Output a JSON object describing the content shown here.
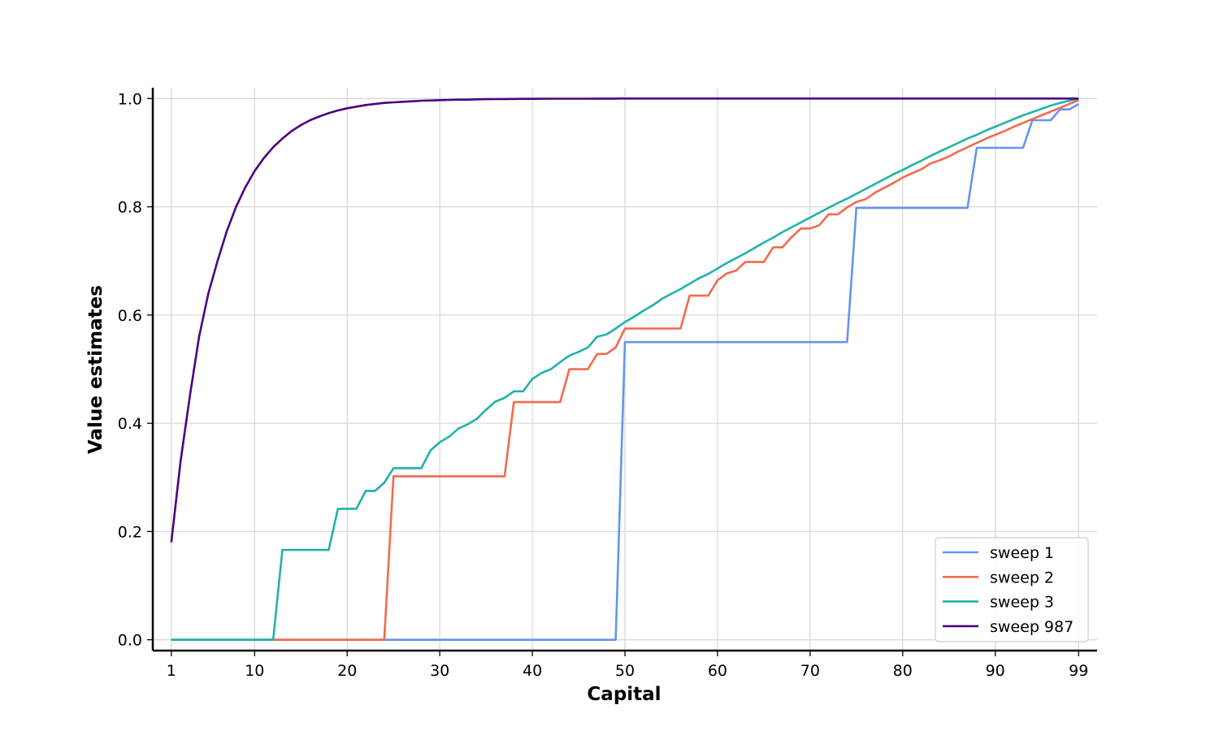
{
  "chart_data": {
    "type": "line",
    "xlabel": "Capital",
    "ylabel": "Value estimates",
    "xlim": [
      -1,
      101
    ],
    "ylim": [
      -0.02,
      1.02
    ],
    "xticks": [
      1,
      10,
      20,
      30,
      40,
      50,
      60,
      70,
      80,
      90,
      99
    ],
    "yticks": [
      0.0,
      0.2,
      0.4,
      0.6,
      0.8,
      1.0
    ],
    "ytick_labels": [
      "0.0",
      "0.2",
      "0.4",
      "0.6",
      "0.8",
      "1.0"
    ],
    "grid": true,
    "legend_position": "lower-right",
    "x": [
      1,
      2,
      3,
      4,
      5,
      6,
      7,
      8,
      9,
      10,
      11,
      12,
      13,
      14,
      15,
      16,
      17,
      18,
      19,
      20,
      21,
      22,
      23,
      24,
      25,
      26,
      27,
      28,
      29,
      30,
      31,
      32,
      33,
      34,
      35,
      36,
      37,
      38,
      39,
      40,
      41,
      42,
      43,
      44,
      45,
      46,
      47,
      48,
      49,
      50,
      51,
      52,
      53,
      54,
      55,
      56,
      57,
      58,
      59,
      60,
      61,
      62,
      63,
      64,
      65,
      66,
      67,
      68,
      69,
      70,
      71,
      72,
      73,
      74,
      75,
      76,
      77,
      78,
      79,
      80,
      81,
      82,
      83,
      84,
      85,
      86,
      87,
      88,
      89,
      90,
      91,
      92,
      93,
      94,
      95,
      96,
      97,
      98,
      99
    ],
    "series": [
      {
        "name": "sweep 1",
        "color": "#6495ED",
        "values": [
          0,
          0,
          0,
          0,
          0,
          0,
          0,
          0,
          0,
          0,
          0,
          0,
          0,
          0,
          0,
          0,
          0,
          0,
          0,
          0,
          0,
          0,
          0,
          0,
          0,
          0,
          0,
          0,
          0,
          0,
          0,
          0,
          0,
          0,
          0,
          0,
          0,
          0,
          0,
          0,
          0,
          0,
          0,
          0,
          0,
          0,
          0,
          0,
          0,
          0.55,
          0.55,
          0.55,
          0.55,
          0.55,
          0.55,
          0.55,
          0.55,
          0.55,
          0.55,
          0.55,
          0.55,
          0.55,
          0.55,
          0.55,
          0.55,
          0.55,
          0.55,
          0.55,
          0.55,
          0.55,
          0.55,
          0.55,
          0.55,
          0.55,
          0.798,
          0.798,
          0.798,
          0.798,
          0.798,
          0.798,
          0.798,
          0.798,
          0.798,
          0.798,
          0.798,
          0.798,
          0.798,
          0.909,
          0.909,
          0.909,
          0.909,
          0.909,
          0.909,
          0.96,
          0.96,
          0.96,
          0.98,
          0.98,
          0.99
        ]
      },
      {
        "name": "sweep 2",
        "color": "#F4694F",
        "values": [
          0,
          0,
          0,
          0,
          0,
          0,
          0,
          0,
          0,
          0,
          0,
          0,
          0,
          0,
          0,
          0,
          0,
          0,
          0,
          0,
          0,
          0,
          0,
          0,
          0.302,
          0.302,
          0.302,
          0.302,
          0.302,
          0.302,
          0.302,
          0.302,
          0.302,
          0.302,
          0.302,
          0.302,
          0.302,
          0.439,
          0.439,
          0.439,
          0.439,
          0.439,
          0.439,
          0.5,
          0.5,
          0.5,
          0.528,
          0.528,
          0.54,
          0.575,
          0.575,
          0.575,
          0.575,
          0.575,
          0.575,
          0.575,
          0.636,
          0.636,
          0.636,
          0.664,
          0.677,
          0.682,
          0.698,
          0.698,
          0.698,
          0.725,
          0.725,
          0.744,
          0.76,
          0.76,
          0.766,
          0.786,
          0.786,
          0.799,
          0.809,
          0.814,
          0.826,
          0.835,
          0.844,
          0.854,
          0.862,
          0.869,
          0.88,
          0.886,
          0.893,
          0.902,
          0.91,
          0.918,
          0.926,
          0.933,
          0.94,
          0.948,
          0.955,
          0.962,
          0.969,
          0.976,
          0.983,
          0.99,
          0.997
        ]
      },
      {
        "name": "sweep 3",
        "color": "#20B2AA",
        "values": [
          0,
          0,
          0,
          0,
          0,
          0,
          0,
          0,
          0,
          0,
          0,
          0,
          0.166,
          0.166,
          0.166,
          0.166,
          0.166,
          0.166,
          0.242,
          0.242,
          0.242,
          0.275,
          0.275,
          0.29,
          0.317,
          0.317,
          0.317,
          0.317,
          0.35,
          0.365,
          0.375,
          0.39,
          0.398,
          0.408,
          0.425,
          0.44,
          0.447,
          0.459,
          0.459,
          0.482,
          0.493,
          0.5,
          0.513,
          0.525,
          0.532,
          0.54,
          0.56,
          0.564,
          0.575,
          0.587,
          0.597,
          0.608,
          0.618,
          0.63,
          0.639,
          0.648,
          0.658,
          0.668,
          0.676,
          0.686,
          0.696,
          0.705,
          0.714,
          0.724,
          0.734,
          0.743,
          0.753,
          0.762,
          0.771,
          0.78,
          0.789,
          0.798,
          0.807,
          0.815,
          0.824,
          0.833,
          0.842,
          0.851,
          0.86,
          0.868,
          0.877,
          0.885,
          0.894,
          0.902,
          0.91,
          0.918,
          0.926,
          0.933,
          0.941,
          0.948,
          0.955,
          0.962,
          0.969,
          0.975,
          0.981,
          0.987,
          0.992,
          0.996,
          1.0
        ]
      },
      {
        "name": "sweep 987",
        "color": "#4B0082",
        "values": [
          0.18,
          0.33,
          0.45,
          0.56,
          0.64,
          0.7,
          0.755,
          0.8,
          0.836,
          0.866,
          0.89,
          0.91,
          0.926,
          0.94,
          0.951,
          0.96,
          0.967,
          0.973,
          0.978,
          0.982,
          0.985,
          0.988,
          0.99,
          0.992,
          0.993,
          0.994,
          0.995,
          0.996,
          0.9965,
          0.997,
          0.9975,
          0.998,
          0.998,
          0.9985,
          0.9988,
          0.999,
          0.9992,
          0.9993,
          0.9994,
          0.9995,
          0.9996,
          0.9997,
          0.9997,
          0.9998,
          0.9998,
          0.9998,
          0.9999,
          0.9999,
          0.9999,
          1,
          1,
          1,
          1,
          1,
          1,
          1,
          1,
          1,
          1,
          1,
          1,
          1,
          1,
          1,
          1,
          1,
          1,
          1,
          1,
          1,
          1,
          1,
          1,
          1,
          1,
          1,
          1,
          1,
          1,
          1,
          1,
          1,
          1,
          1,
          1,
          1,
          1,
          1,
          1,
          1,
          1,
          1,
          1,
          1,
          1,
          1,
          1,
          1,
          1
        ]
      }
    ]
  }
}
